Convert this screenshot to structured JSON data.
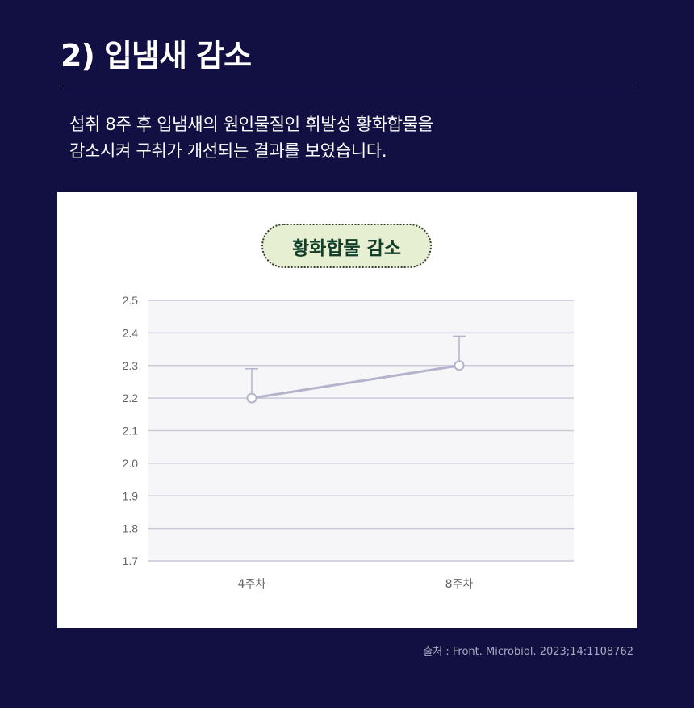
{
  "header": {
    "title": "2) 입냄새 감소",
    "description_lines": [
      "섭취 8주 후 입냄새의 원인물질인 휘발성 황화합물을",
      "감소시켜 구취가 개선되는 결과를 보였습니다."
    ]
  },
  "chart_data": {
    "type": "line",
    "title": "황화합물 감소",
    "categories": [
      "4주차",
      "8주차"
    ],
    "values": [
      2.2,
      2.3
    ],
    "error_upper": [
      2.29,
      2.39
    ],
    "y_ticks": [
      "2.5",
      "2.4",
      "2.3",
      "2.2",
      "2.1",
      "2.0",
      "1.9",
      "1.8",
      "1.7"
    ],
    "ylim": [
      1.7,
      2.5
    ],
    "grid": true,
    "colors": {
      "line": "#b4b3cc",
      "marker_fill": "#ffffff",
      "grid": "#c9c9d9",
      "plot_bg": "#f6f6f8"
    }
  },
  "footer": {
    "source": "출처 : Front. Microbiol. 2023;14:1108762"
  }
}
